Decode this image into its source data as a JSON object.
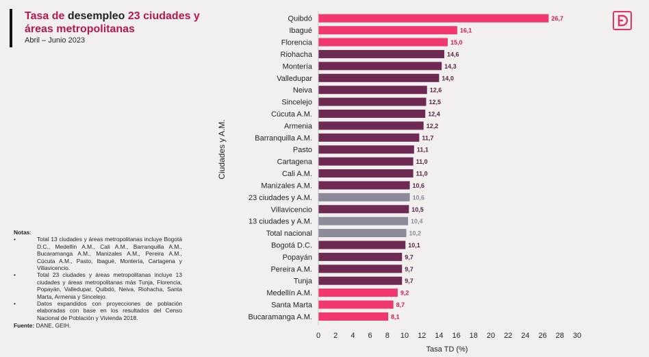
{
  "header": {
    "title_part1": "Tasa de ",
    "title_part2": "desempleo",
    "title_part3": " 23 ciudades y áreas metropolitanas",
    "subtitle": "Abril – Junio 2023"
  },
  "logo": {
    "icon": "d-logo-icon",
    "color": "#e0336b"
  },
  "notes": {
    "heading": "Notas",
    "heading_suffix": ":",
    "items": [
      "Total 13 ciudades y áreas metropolitanas incluye Bogotá D.C., Medellín A.M., Cali A.M., Barranquilla A.M., Bucaramanga A.M., Manizales A.M., Pereira A.M., Cúcuta A.M., Pasto, Ibagué, Montería, Cartagena y Villavicencio.",
      "Total 23 ciudades y áreas metropolitanas incluye 13 ciudades y áreas metropolitanas más Tunja, Florencia, Popayán, Valledupar, Quibdó, Neiva, Riohacha, Santa Marta, Armenia y Sincelejo.",
      "Datos expandidos con proyecciones de población elaboradas con base en los resultados del Censo Nacional de Población y Vivienda 2018."
    ],
    "bullet": "•",
    "source_label": "Fuente:",
    "source_text": " DANE, GEIH."
  },
  "colors": {
    "pink": "#f0386e",
    "purple": "#6e2a53",
    "gray": "#8c8a99",
    "pink_label": "#d21c4f",
    "purple_label": "#5a2346",
    "gray_label": "#8c8a99"
  },
  "chart_data": {
    "type": "bar",
    "orientation": "horizontal",
    "xlabel": "Tasa TD (%)",
    "ylabel": "Ciudades y A.M.",
    "xlim": [
      0,
      30
    ],
    "xticks": [
      0,
      2,
      4,
      6,
      8,
      10,
      12,
      14,
      16,
      18,
      20,
      22,
      24,
      26,
      28,
      30
    ],
    "grid": false,
    "categories": [
      "Quibdó",
      "Ibagué",
      "Florencia",
      "Riohacha",
      "Montería",
      "Valledupar",
      "Neiva",
      "Sincelejo",
      "Cúcuta A.M.",
      "Armenia",
      "Barranquilla A.M.",
      "Pasto",
      "Cartagena",
      "Cali A.M.",
      "Manizales A.M.",
      "23 ciudades y A.M.",
      "Villavicencio",
      "13 ciudades y A.M.",
      "Total nacional",
      "Bogotá D.C.",
      "Popayán",
      "Pereira A.M.",
      "Tunja",
      "Medellín A.M.",
      "Santa Marta",
      "Bucaramanga A.M."
    ],
    "values": [
      26.7,
      16.1,
      15.0,
      14.6,
      14.3,
      14.0,
      12.6,
      12.5,
      12.4,
      12.2,
      11.7,
      11.1,
      11.0,
      11.0,
      10.6,
      10.6,
      10.5,
      10.4,
      10.2,
      10.1,
      9.7,
      9.7,
      9.7,
      9.2,
      8.7,
      8.1
    ],
    "value_labels": [
      "26,7",
      "16,1",
      "15,0",
      "14,6",
      "14,3",
      "14,0",
      "12,6",
      "12,5",
      "12,4",
      "12,2",
      "11,7",
      "11,1",
      "11,0",
      "11,0",
      "10,6",
      "10,6",
      "10,5",
      "10,4",
      "10,2",
      "10,1",
      "9,7",
      "9,7",
      "9,7",
      "9,2",
      "8,7",
      "8,1"
    ],
    "bar_groups": [
      "pink",
      "pink",
      "pink",
      "purple",
      "purple",
      "purple",
      "purple",
      "purple",
      "purple",
      "purple",
      "purple",
      "purple",
      "purple",
      "purple",
      "purple",
      "gray",
      "purple",
      "gray",
      "gray",
      "purple",
      "purple",
      "purple",
      "purple",
      "pink",
      "pink",
      "pink"
    ]
  }
}
